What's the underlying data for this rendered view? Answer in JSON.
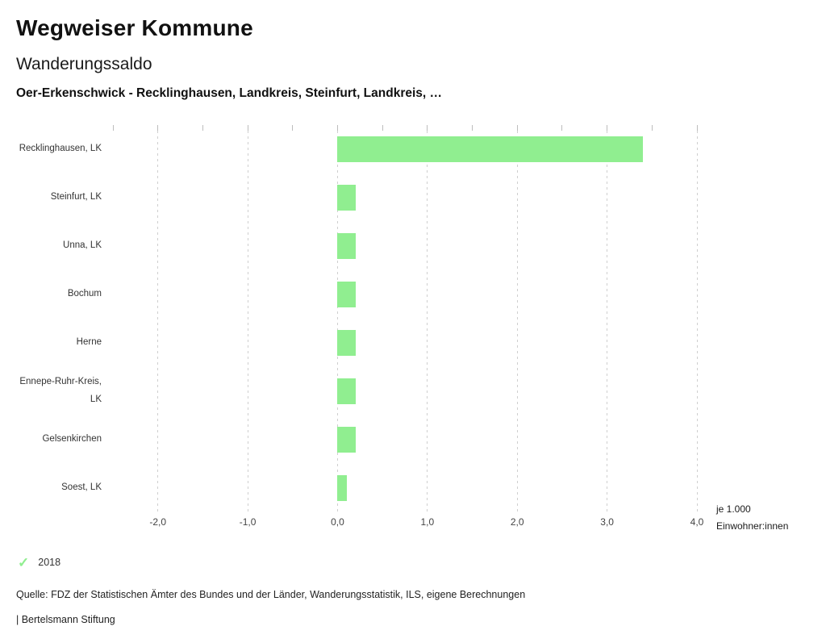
{
  "header": {
    "brand": "Wegweiser Kommune",
    "title": "Wanderungssaldo",
    "subtitle": "Oer-Erkenschwick - Recklinghausen, Landkreis, Steinfurt, Landkreis, …"
  },
  "chart_data": {
    "type": "bar",
    "orientation": "horizontal",
    "title": "Wanderungssaldo",
    "subtitle": "Oer-Erkenschwick - Recklinghausen, Landkreis, Steinfurt, Landkreis, …",
    "categories": [
      "Recklinghausen, LK",
      "Steinfurt, LK",
      "Unna, LK",
      "Bochum",
      "Herne",
      "Ennepe-Ruhr-Kreis, LK",
      "Gelsenkirchen",
      "Soest, LK"
    ],
    "series": [
      {
        "name": "2018",
        "color": "#90ee90",
        "values": [
          3.4,
          0.2,
          0.2,
          0.2,
          0.2,
          0.2,
          0.2,
          0.1
        ]
      }
    ],
    "xlim": [
      -2.5,
      4.0
    ],
    "xticks": [
      -2.0,
      -1.0,
      0.0,
      1.0,
      2.0,
      3.0,
      4.0
    ],
    "xtick_labels": [
      "-2,0",
      "-1,0",
      "0,0",
      "1,0",
      "2,0",
      "3,0",
      "4,0"
    ],
    "minor_tick_step": 0.5,
    "x_unit_label": "je 1.000 Einwohner:innen",
    "grid": "dashed-vertical",
    "legend_position": "bottom-left",
    "gridline_color": "#cfcfcf"
  },
  "axis_unit": "je 1.000 Einwohner:innen",
  "icons": {
    "legend_check": "✓"
  },
  "footer": {
    "source": "Quelle: FDZ der Statistischen Ämter des Bundes und der Länder, Wanderungsstatistik, ILS, eigene Berechnungen",
    "brand": "| Bertelsmann Stiftung"
  }
}
